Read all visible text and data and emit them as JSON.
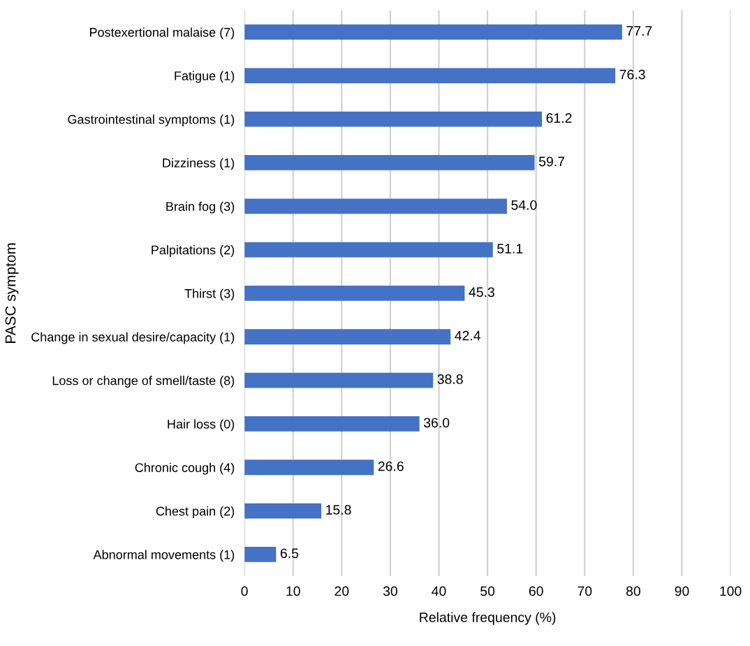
{
  "chart_data": {
    "type": "bar",
    "orientation": "horizontal",
    "xlabel": "Relative frequency (%)",
    "ylabel": "PASC symptom",
    "categories": [
      "Postexertional malaise (7)",
      "Fatigue (1)",
      "Gastrointestinal symptoms (1)",
      "Dizziness (1)",
      "Brain fog (3)",
      "Palpitations (2)",
      "Thirst (3)",
      "Change in sexual desire/capacity (1)",
      "Loss or change of smell/taste (8)",
      "Hair loss (0)",
      "Chronic cough (4)",
      "Chest pain (2)",
      "Abnormal movements (1)"
    ],
    "values": [
      77.7,
      76.3,
      61.2,
      59.7,
      54.0,
      51.1,
      45.3,
      42.4,
      38.8,
      36.0,
      26.6,
      15.8,
      6.5
    ],
    "value_labels": [
      "77.7",
      "76.3",
      "61.2",
      "59.7",
      "54.0",
      "51.1",
      "45.3",
      "42.4",
      "38.8",
      "36.0",
      "26.6",
      "15.8",
      "6.5"
    ],
    "color": "#4472c4",
    "xlim": [
      0,
      100
    ],
    "xticks": [
      0,
      10,
      20,
      30,
      40,
      50,
      60,
      70,
      80,
      90,
      100
    ],
    "grid": "x"
  }
}
